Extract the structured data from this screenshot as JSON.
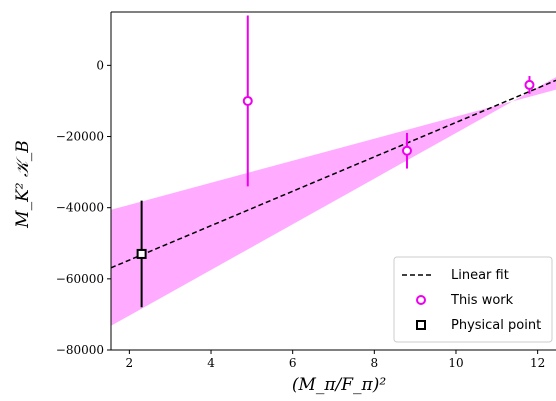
{
  "chart_data": {
    "type": "scatter",
    "xlabel": "(M_π/F_π)²",
    "ylabel": "M_K² 𝒦_B",
    "xlim": [
      1.55,
      12.45
    ],
    "ylim": [
      -80000,
      15000
    ],
    "x_ticks": [
      2,
      4,
      6,
      8,
      10,
      12
    ],
    "y_ticks": [
      0,
      -20000,
      -40000,
      -60000,
      -80000
    ],
    "x_tick_labels": [
      "2",
      "4",
      "6",
      "8",
      "10",
      "12"
    ],
    "y_tick_labels": [
      "0",
      "−20000",
      "−40000",
      "−60000",
      "−80000"
    ],
    "grid": false,
    "legend_position": "lower-right",
    "colors": {
      "band": "#ff66ff",
      "this_work": "#ee00ee",
      "physical": "#000000",
      "fit": "#000000"
    },
    "series": [
      {
        "name": "Linear fit",
        "kind": "line",
        "style": "dashed",
        "x": [
          1.55,
          12.45
        ],
        "y": [
          -56900,
          -4200
        ],
        "band_lower": [
          -73200,
          -3300
        ],
        "band_upper": [
          -40600,
          -6800
        ]
      },
      {
        "name": "This work",
        "kind": "errorbar",
        "marker": "circle",
        "x": [
          4.9,
          8.8,
          11.8
        ],
        "y": [
          -10000,
          -24000,
          -5500
        ],
        "yerr": [
          24000,
          5000,
          2500
        ]
      },
      {
        "name": "Physical point",
        "kind": "errorbar",
        "marker": "square",
        "x": [
          2.3
        ],
        "y": [
          -53000
        ],
        "yerr": [
          15000
        ]
      }
    ]
  }
}
